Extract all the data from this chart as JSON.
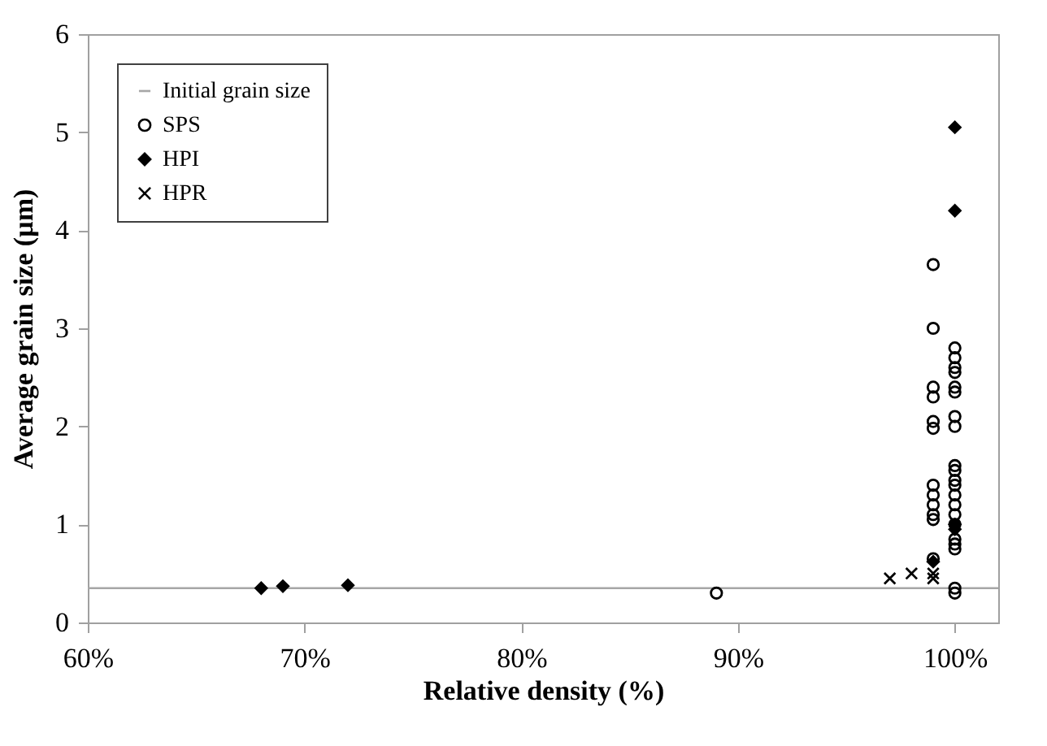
{
  "chart_data": {
    "type": "scatter",
    "xlabel": "Relative density (%)",
    "ylabel": "Average grain size (µm)",
    "xlim": [
      60,
      102
    ],
    "xticks": [
      {
        "value": 60,
        "label": "60%"
      },
      {
        "value": 70,
        "label": "70%"
      },
      {
        "value": 80,
        "label": "80%"
      },
      {
        "value": 90,
        "label": "90%"
      },
      {
        "value": 100,
        "label": "100%"
      }
    ],
    "ylim": [
      0,
      6
    ],
    "yticks": [
      0,
      1,
      2,
      3,
      4,
      5,
      6
    ],
    "grid": false,
    "legend": "top left",
    "series": [
      {
        "name": "Initial grain size",
        "type": "line",
        "color": "#a6a6a6",
        "x": [
          60,
          102
        ],
        "values": [
          0.35,
          0.35
        ]
      },
      {
        "name": "SPS",
        "color": "#000000",
        "marker": "circle",
        "x": [
          89,
          99,
          99,
          99,
          99,
          99,
          99,
          99,
          99,
          99,
          99,
          99,
          99,
          100,
          100,
          100,
          100,
          100,
          100,
          100,
          100,
          100,
          100,
          100,
          100,
          100,
          100,
          100,
          100,
          100,
          100,
          100,
          100,
          100
        ],
        "values": [
          0.3,
          3.65,
          3.0,
          2.4,
          2.3,
          2.05,
          1.98,
          1.4,
          1.3,
          1.2,
          1.1,
          1.05,
          0.65,
          2.8,
          2.7,
          2.6,
          2.55,
          2.4,
          2.35,
          2.1,
          2.0,
          1.6,
          1.55,
          1.45,
          1.4,
          1.3,
          1.2,
          1.1,
          1.0,
          0.85,
          0.8,
          0.75,
          0.35,
          0.3
        ]
      },
      {
        "name": "HPI",
        "color": "#000000",
        "marker": "diamond",
        "x": [
          68,
          69,
          72,
          99,
          100,
          100,
          100,
          100
        ],
        "values": [
          0.35,
          0.37,
          0.38,
          0.62,
          5.05,
          4.2,
          1.0,
          0.95
        ]
      },
      {
        "name": "HPR",
        "color": "#000000",
        "marker": "cross",
        "x": [
          97,
          98,
          99,
          99
        ],
        "values": [
          0.45,
          0.5,
          0.5,
          0.45
        ]
      }
    ]
  }
}
